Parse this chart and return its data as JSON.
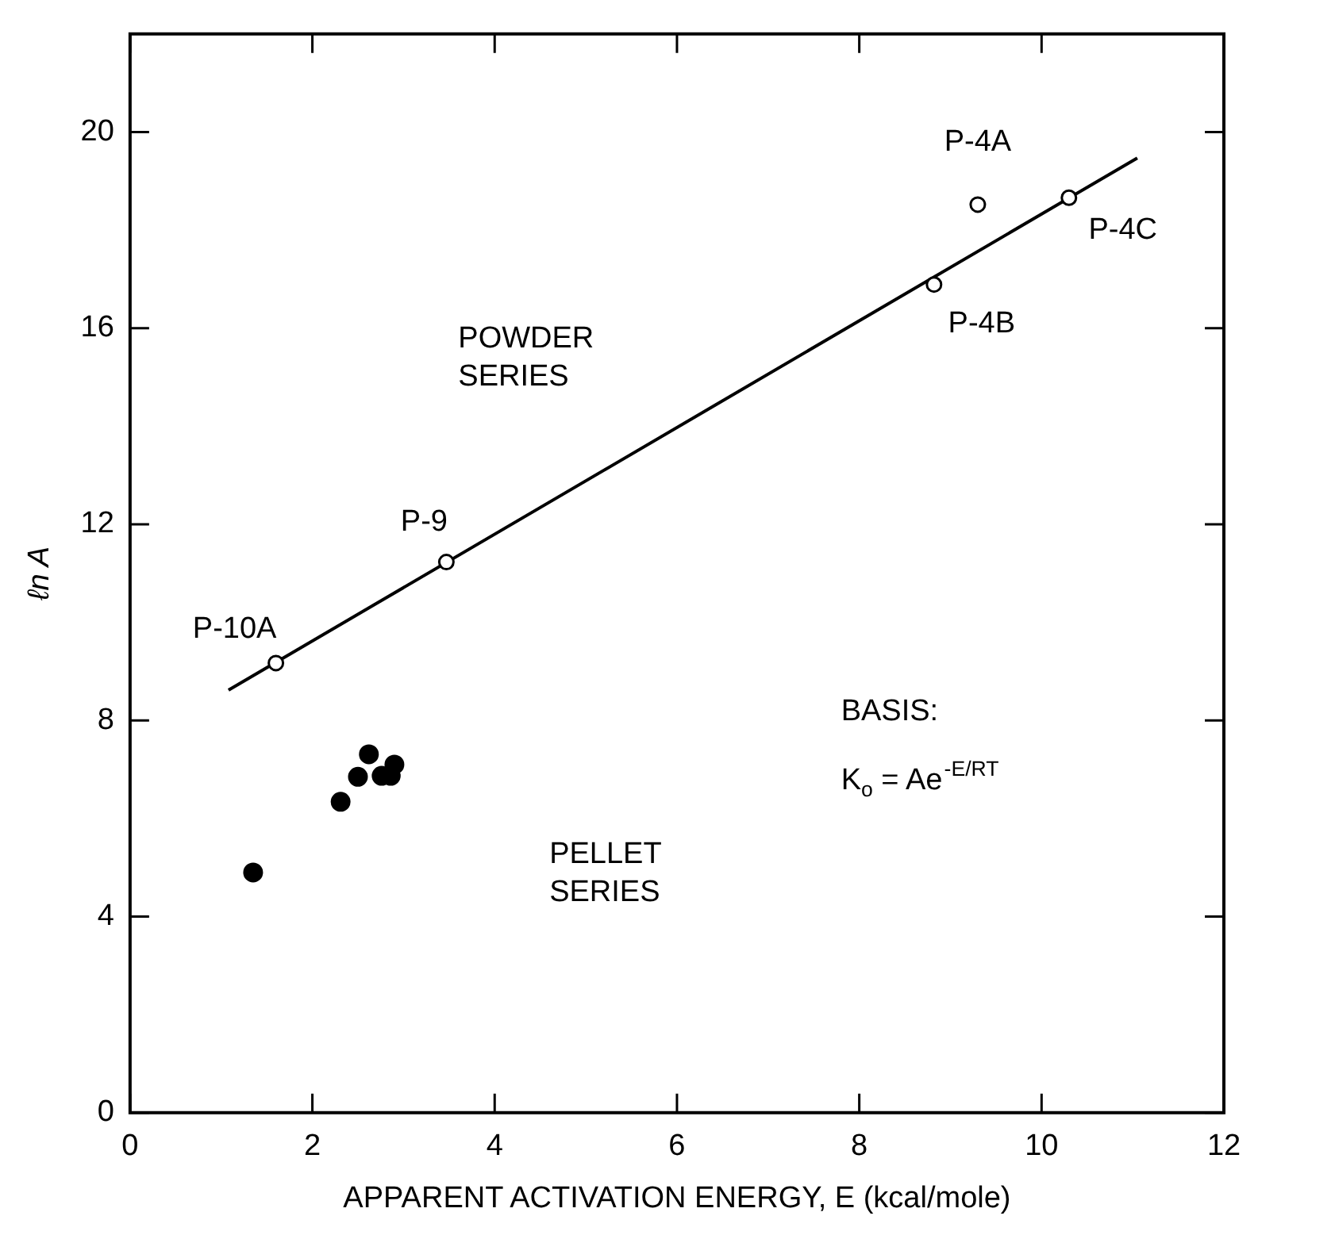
{
  "chart_data": {
    "type": "scatter",
    "xlabel": "APPARENT ACTIVATION ENERGY, E (kcal/mole)",
    "ylabel": "ℓn A",
    "xlim": [
      0,
      12
    ],
    "xticks": [
      0,
      2,
      4,
      6,
      8,
      10,
      12
    ],
    "ylim": [
      0,
      22
    ],
    "yticks": [
      0,
      4,
      8,
      12,
      16,
      20
    ],
    "grid": false,
    "legend": false,
    "series": [
      {
        "marker": "circle",
        "color": "#000000",
        "x": [
          1.6,
          3.47,
          8.82,
          9.3,
          10.3
        ],
        "values": [
          9.17,
          11.23,
          16.89,
          18.52,
          18.66
        ]
      },
      {
        "marker": "circle",
        "color": "#000000",
        "x": [
          1.35,
          2.31,
          2.5,
          2.62,
          2.76,
          2.86,
          2.9
        ],
        "values": [
          4.9,
          6.34,
          6.85,
          7.31,
          6.87,
          6.87,
          7.1
        ]
      },
      {
        "type": "line",
        "marker": "none",
        "color": "#000000",
        "x": [
          1.08,
          11.05
        ],
        "values": [
          8.62,
          19.47
        ]
      }
    ],
    "annotations": [
      {
        "text": "P-10A",
        "x": 1.6,
        "y": 9.17
      },
      {
        "text": "P-9",
        "x": 3.47,
        "y": 11.23
      },
      {
        "text": "P-4B",
        "x": 8.82,
        "y": 16.89
      },
      {
        "text": "P-4A",
        "x": 9.3,
        "y": 18.52
      },
      {
        "text": "P-4C",
        "x": 10.3,
        "y": 18.66
      },
      "POWDER SERIES",
      "PELLET SERIES",
      "BASIS:",
      "K$_{o}$ = Ae$^{-E/RT}$"
    ]
  }
}
